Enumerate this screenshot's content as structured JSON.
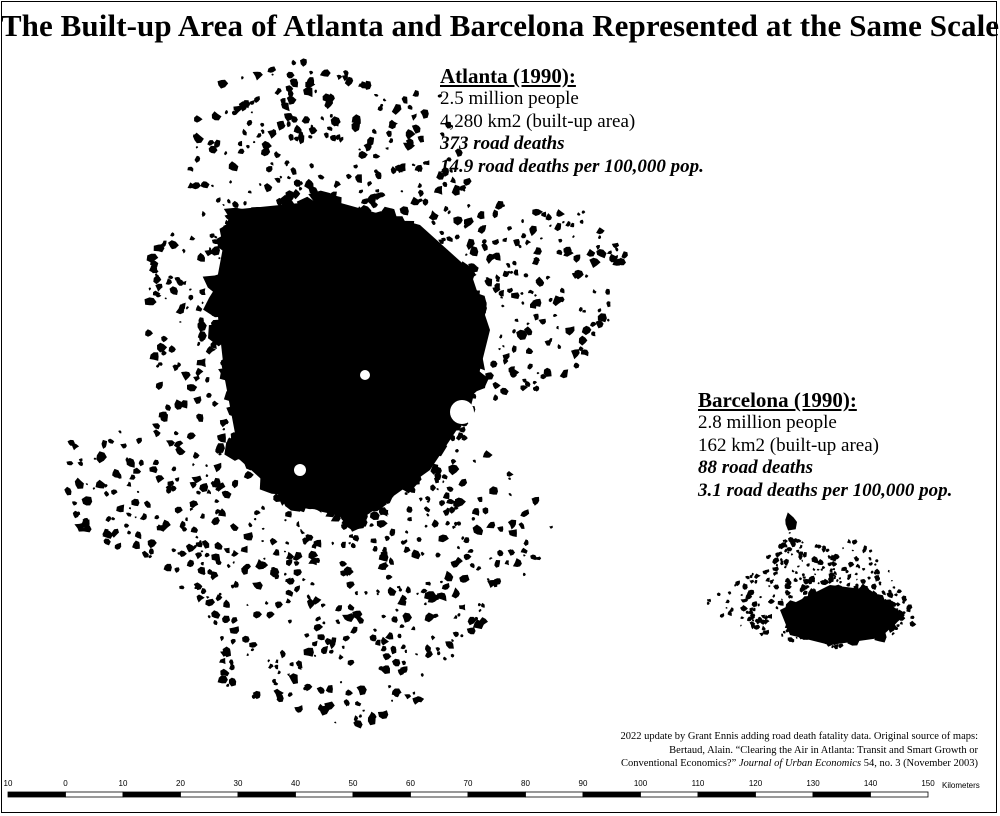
{
  "title": "The Built-up Area of Atlanta and Barcelona Represented at the Same Scale",
  "atlanta": {
    "heading": "Atlanta (1990):",
    "population": "2.5 million people",
    "area": "4,280 km2 (built-up area)",
    "road_deaths": "373 road deaths",
    "rate": "14.9 road deaths per 100,000 pop."
  },
  "barcelona": {
    "heading": "Barcelona (1990):",
    "population": "2.8 million people",
    "area": "162 km2 (built-up area)",
    "road_deaths": "88 road deaths",
    "rate": "3.1 road deaths per 100,000 pop."
  },
  "credit": {
    "line1": "2022 update by Grant Ennis adding road death fatality data. Original source of maps:",
    "line2": "Bertaud, Alain. “Clearing the Air in Atlanta: Transit and Smart Growth or",
    "line3_a": "Conventional Economics?” ",
    "line3_journal": "Journal of Urban Economics",
    "line3_b": " 54, no. 3 (November 2003)"
  },
  "scale_bar": {
    "ticks": [
      "10",
      "0",
      "10",
      "20",
      "30",
      "40",
      "50",
      "60",
      "70",
      "80",
      "90",
      "100",
      "110",
      "120",
      "130",
      "140",
      "150"
    ],
    "unit": "Kilometers"
  },
  "colors": {
    "built_up": "#000000",
    "background": "#ffffff"
  }
}
